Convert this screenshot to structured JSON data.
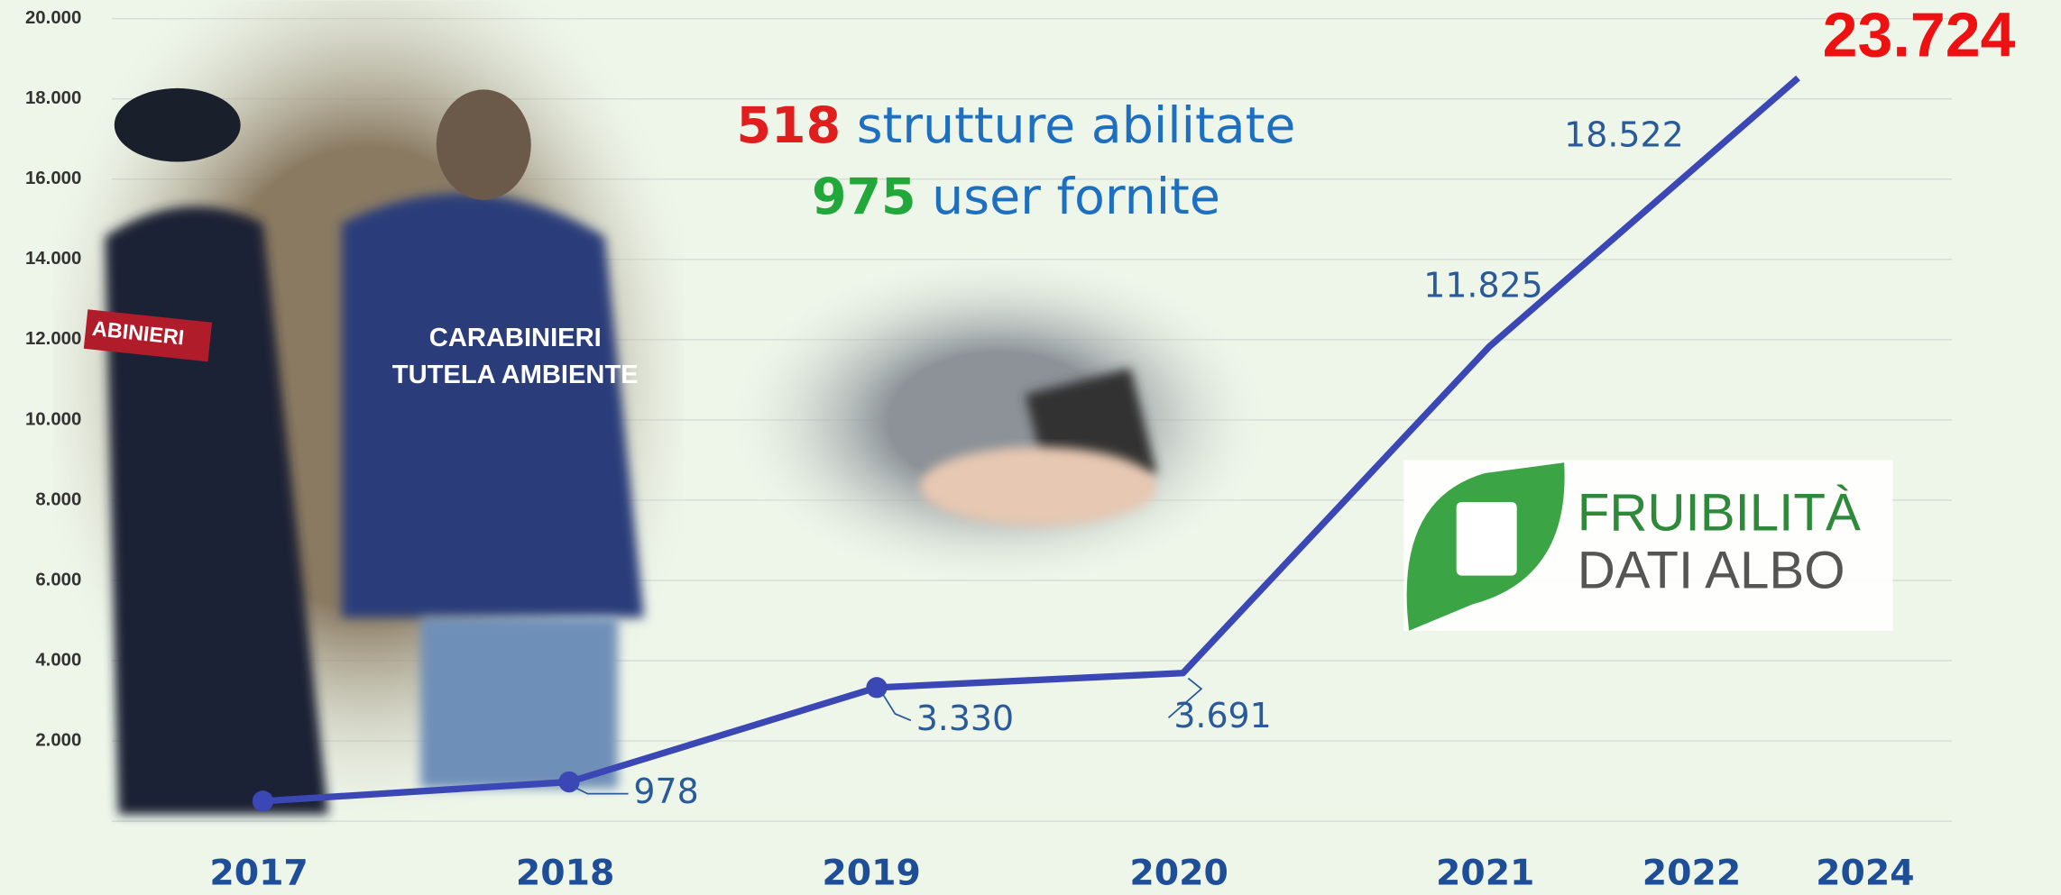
{
  "chart_data": {
    "type": "line",
    "headline": {
      "count1": "518",
      "text1": " strutture abilitate",
      "count2": "975",
      "text2": " user fornite"
    },
    "logo": {
      "line1": "FRUIBILITÀ",
      "line2": "DATI ALBO"
    },
    "photo_texts": [
      "CARABINIERI",
      "TUTELA AMBIENTE",
      "ABINIERI"
    ],
    "annotation": "23.724",
    "categories": [
      "2017",
      "2018",
      "2019",
      "2020",
      "2021",
      "2022",
      "2024"
    ],
    "series": [
      {
        "name": "user",
        "color": "#3a47b5",
        "values": [
          500,
          978,
          3330,
          3691,
          11825,
          18522,
          null
        ],
        "value_labels": [
          null,
          "978",
          "3.330",
          "3.691",
          "11.825",
          "18.522",
          null
        ]
      }
    ],
    "ylim": [
      0,
      20000
    ],
    "yticks": [
      {
        "value": 2000,
        "label": "2.000"
      },
      {
        "value": 4000,
        "label": "4.000"
      },
      {
        "value": 6000,
        "label": "6.000"
      },
      {
        "value": 8000,
        "label": "8.000"
      },
      {
        "value": 10000,
        "label": "10.000"
      },
      {
        "value": 12000,
        "label": "12.000"
      },
      {
        "value": 14000,
        "label": "14.000"
      },
      {
        "value": 16000,
        "label": "16.000"
      },
      {
        "value": 18000,
        "label": "18.000"
      },
      {
        "value": 20000,
        "label": "20.000"
      }
    ],
    "grid": true
  }
}
